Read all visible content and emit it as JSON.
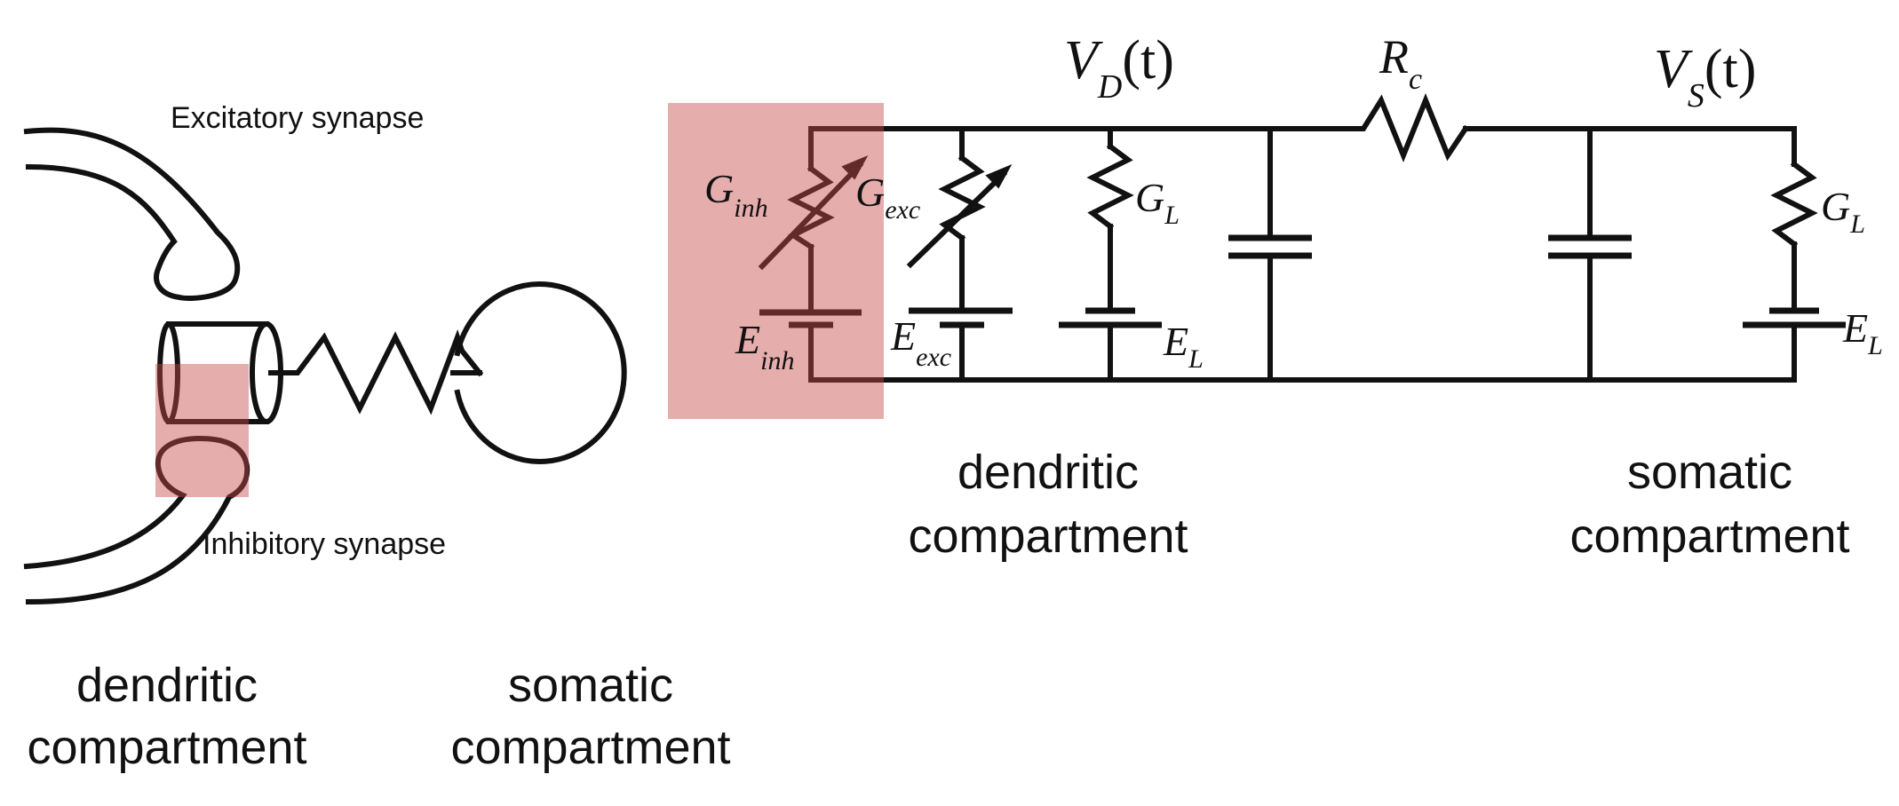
{
  "colors": {
    "wire": "#111111",
    "highlight": "#c84a4a",
    "background": "#ffffff"
  },
  "neuron": {
    "excitatory_label": "Excitatory synapse",
    "inhibitory_label": "Inhibitory synapse",
    "dendritic_caption": [
      "dendritic",
      "compartment"
    ],
    "somatic_caption": [
      "somatic",
      "compartment"
    ]
  },
  "circuit": {
    "vd": {
      "sym": "V",
      "sub": "D",
      "rest": "(t)"
    },
    "vs": {
      "sym": "V",
      "sub": "S",
      "rest": "(t)"
    },
    "rc": {
      "sym": "R",
      "sub": "c"
    },
    "g_inh": {
      "sym": "G",
      "sub": "inh"
    },
    "g_exc": {
      "sym": "G",
      "sub": "exc"
    },
    "e_inh": {
      "sym": "E",
      "sub": "inh"
    },
    "e_exc": {
      "sym": "E",
      "sub": "exc"
    },
    "gl_dend": {
      "sym": "G",
      "sub": "L"
    },
    "el_dend": {
      "sym": "E",
      "sub": "L"
    },
    "gl_soma": {
      "sym": "G",
      "sub": "L"
    },
    "el_soma": {
      "sym": "E",
      "sub": "L"
    },
    "dendritic_caption": [
      "dendritic",
      "compartment"
    ],
    "somatic_caption": [
      "somatic",
      "compartment"
    ]
  }
}
